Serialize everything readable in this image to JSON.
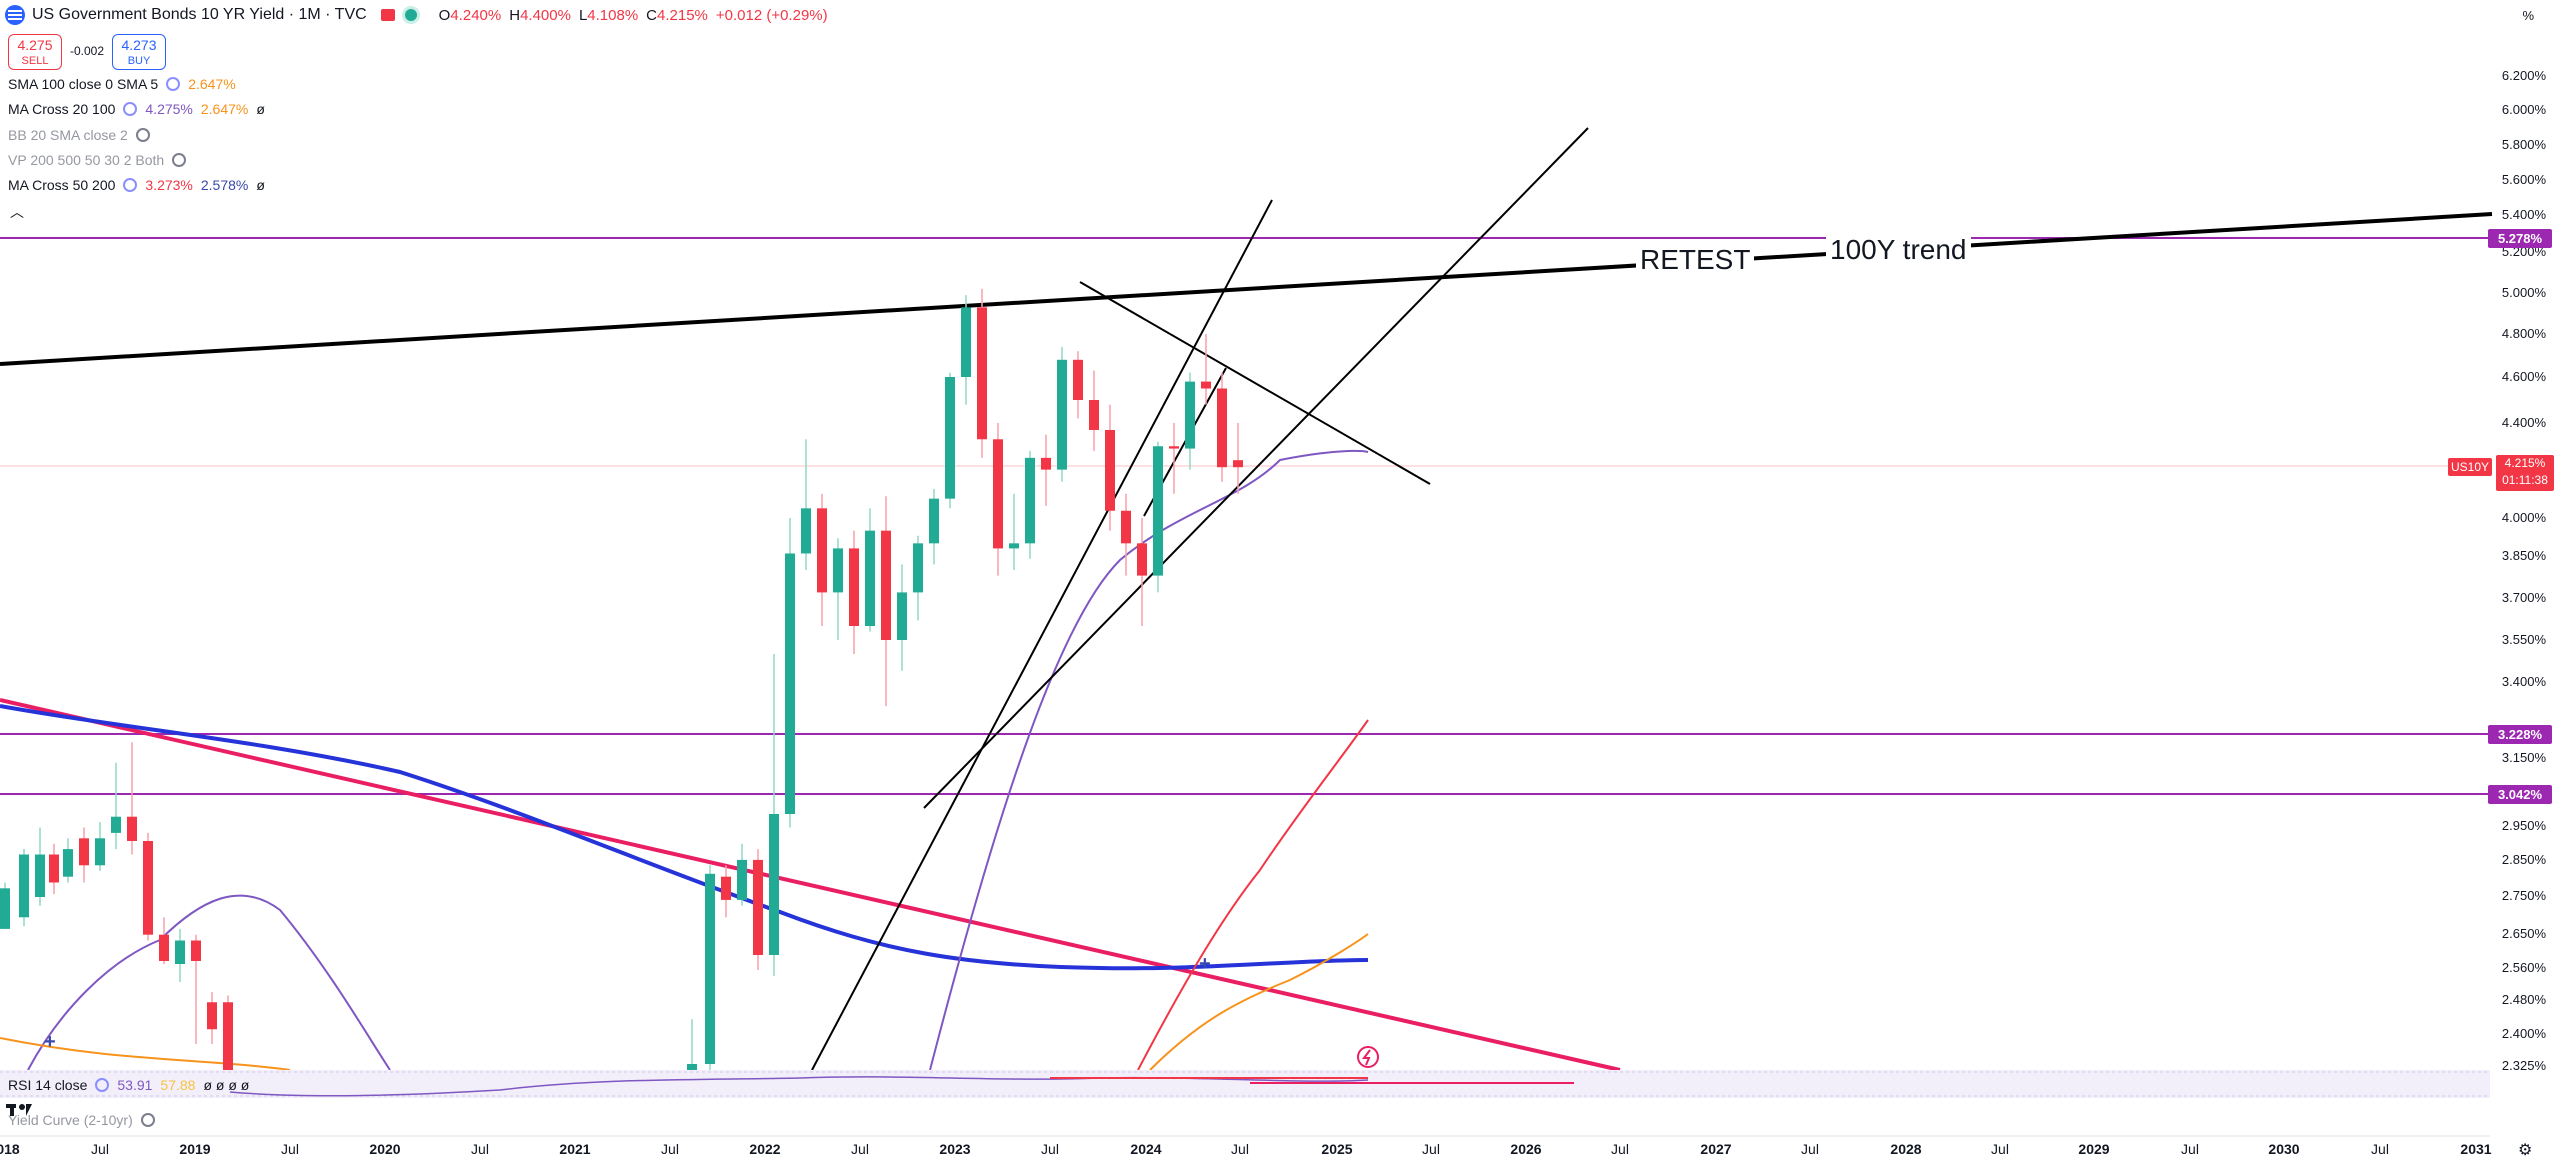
{
  "header": {
    "title": "US Government Bonds 10 YR Yield · 1M · TVC",
    "ohlc": {
      "o_label": "O",
      "o": "4.240%",
      "h_label": "H",
      "h": "4.400%",
      "l_label": "L",
      "l": "4.108%",
      "c_label": "C",
      "c": "4.215%",
      "change": "+0.012 (+0.29%)"
    }
  },
  "trade": {
    "sell_price": "4.275",
    "sell_label": "SELL",
    "spread": "-0.002",
    "buy_price": "4.273",
    "buy_label": "BUY"
  },
  "indicators": [
    {
      "name": "SMA 100 close 0 SMA 5",
      "v1": "",
      "v2": "2.647%",
      "v3": ""
    },
    {
      "name": "MA Cross 20 100",
      "v1": "4.275%",
      "v2": "2.647%",
      "v3": "ø"
    },
    {
      "name": "BB 20 SMA close 2",
      "v1": "",
      "v2": "",
      "v3": ""
    },
    {
      "name": "VP 200 500 50 30 2 Both",
      "v1": "",
      "v2": "",
      "v3": ""
    },
    {
      "name": "MA Cross 50 200",
      "v1": "3.273%",
      "v2": "2.578%",
      "v3": "ø"
    }
  ],
  "axis": {
    "unit": "%",
    "ticks": [
      "6.200%",
      "6.000%",
      "5.800%",
      "5.600%",
      "5.400%",
      "5.200%",
      "5.000%",
      "4.800%",
      "4.600%",
      "4.400%",
      "4.000%",
      "3.850%",
      "3.700%",
      "3.550%",
      "3.400%",
      "3.150%",
      "2.950%",
      "2.850%",
      "2.750%",
      "2.650%",
      "2.560%",
      "2.480%",
      "2.400%",
      "2.325%"
    ],
    "tags": [
      {
        "label": "5.278%",
        "color": "#9c27b0"
      },
      {
        "label": "3.228%",
        "color": "#9c27b0"
      },
      {
        "label": "3.042%",
        "color": "#9c27b0"
      }
    ],
    "symbol_tag": "US10Y",
    "price_tag": "4.215%",
    "countdown": "01:11:38"
  },
  "annotations": {
    "retest": "RETEST",
    "trend": "100Y trend"
  },
  "xaxis": [
    "018",
    "Jul",
    "2019",
    "Jul",
    "2020",
    "Jul",
    "2021",
    "Jul",
    "2022",
    "Jul",
    "2023",
    "Jul",
    "2024",
    "Jul",
    "2025",
    "Jul",
    "2026",
    "Jul",
    "2027",
    "Jul",
    "2028",
    "Jul",
    "2029",
    "Jul",
    "2030",
    "Jul",
    "2031"
  ],
  "rsi": {
    "name": "RSI 14 close",
    "v1": "53.91",
    "v2": "57.88",
    "zeros": "ø ø ø ø"
  },
  "yield_curve": {
    "name": "Yield Curve (2-10yr)"
  },
  "chart_data": {
    "type": "candlestick",
    "title": "US Government Bonds 10 YR Yield · 1M · TVC",
    "ylim": [
      2.3,
      6.3
    ],
    "ticks": [
      2.325,
      2.4,
      2.48,
      2.56,
      2.65,
      2.75,
      2.85,
      2.95,
      3.15,
      3.4,
      3.55,
      3.7,
      3.85,
      4.0,
      4.4,
      4.6,
      4.8,
      5.0,
      5.2,
      5.4,
      5.6,
      5.8,
      6.0,
      6.2
    ],
    "candles": [
      {
        "x": 5,
        "o": 2.74,
        "c": 2.88,
        "h": 2.9,
        "l": 2.74
      },
      {
        "x": 24,
        "o": 2.78,
        "c": 3.0,
        "h": 3.02,
        "l": 2.75
      },
      {
        "x": 40,
        "o": 2.85,
        "c": 3.0,
        "h": 3.1,
        "l": 2.82
      },
      {
        "x": 54,
        "o": 3.0,
        "c": 2.9,
        "h": 3.04,
        "l": 2.86
      },
      {
        "x": 68,
        "o": 2.92,
        "c": 3.02,
        "h": 3.06,
        "l": 2.9
      },
      {
        "x": 84,
        "o": 3.06,
        "c": 2.96,
        "h": 3.1,
        "l": 2.9
      },
      {
        "x": 100,
        "o": 2.96,
        "c": 3.06,
        "h": 3.12,
        "l": 2.94
      },
      {
        "x": 116,
        "o": 3.08,
        "c": 3.14,
        "h": 3.2,
        "l": 3.02
      },
      {
        "x": 132,
        "o": 3.14,
        "c": 3.05,
        "h": 3.22,
        "l": 3.0
      },
      {
        "x": 148,
        "o": 3.05,
        "c": 2.72,
        "h": 3.08,
        "l": 2.7
      },
      {
        "x": 164,
        "o": 2.72,
        "c": 2.63,
        "h": 2.78,
        "l": 2.62
      },
      {
        "x": 180,
        "o": 2.62,
        "c": 2.7,
        "h": 2.74,
        "l": 2.56
      },
      {
        "x": 196,
        "o": 2.7,
        "c": 2.63,
        "h": 2.72,
        "l": 2.38
      },
      {
        "x": 212,
        "o": 2.5,
        "c": 2.42,
        "h": 2.53,
        "l": 2.38
      },
      {
        "x": 228,
        "o": 2.5,
        "c": 2.3,
        "h": 2.52,
        "l": 2.3
      },
      {
        "x": 692,
        "o": 2.3,
        "c": 2.33,
        "h": 2.45,
        "l": 2.3
      },
      {
        "x": 710,
        "o": 2.33,
        "c": 2.93,
        "h": 2.96,
        "l": 2.3
      },
      {
        "x": 726,
        "o": 2.92,
        "c": 2.84,
        "h": 2.96,
        "l": 2.78
      },
      {
        "x": 742,
        "o": 2.84,
        "c": 2.98,
        "h": 3.04,
        "l": 2.82
      },
      {
        "x": 758,
        "o": 2.98,
        "c": 2.65,
        "h": 3.02,
        "l": 2.6
      },
      {
        "x": 774,
        "o": 2.65,
        "c": 3.15,
        "h": 3.5,
        "l": 2.58
      },
      {
        "x": 790,
        "o": 3.15,
        "c": 3.86,
        "h": 4.0,
        "l": 3.1
      },
      {
        "x": 806,
        "o": 3.86,
        "c": 4.04,
        "h": 4.33,
        "l": 3.8
      },
      {
        "x": 822,
        "o": 4.04,
        "c": 3.72,
        "h": 4.1,
        "l": 3.6
      },
      {
        "x": 838,
        "o": 3.72,
        "c": 3.88,
        "h": 3.92,
        "l": 3.55
      },
      {
        "x": 854,
        "o": 3.88,
        "c": 3.6,
        "h": 3.95,
        "l": 3.5
      },
      {
        "x": 870,
        "o": 3.6,
        "c": 3.95,
        "h": 4.04,
        "l": 3.58
      },
      {
        "x": 886,
        "o": 3.95,
        "c": 3.55,
        "h": 4.09,
        "l": 3.32
      },
      {
        "x": 902,
        "o": 3.55,
        "c": 3.72,
        "h": 3.82,
        "l": 3.44
      },
      {
        "x": 918,
        "o": 3.72,
        "c": 3.9,
        "h": 3.93,
        "l": 3.62
      },
      {
        "x": 934,
        "o": 3.9,
        "c": 4.08,
        "h": 4.12,
        "l": 3.82
      },
      {
        "x": 950,
        "o": 4.08,
        "c": 4.6,
        "h": 4.62,
        "l": 4.04
      },
      {
        "x": 966,
        "o": 4.6,
        "c": 4.93,
        "h": 4.99,
        "l": 4.48
      },
      {
        "x": 982,
        "o": 4.93,
        "c": 4.33,
        "h": 5.02,
        "l": 4.25
      },
      {
        "x": 998,
        "o": 4.33,
        "c": 3.88,
        "h": 4.4,
        "l": 3.78
      },
      {
        "x": 1014,
        "o": 3.88,
        "c": 3.9,
        "h": 4.1,
        "l": 3.8
      },
      {
        "x": 1030,
        "o": 3.9,
        "c": 4.25,
        "h": 4.28,
        "l": 3.84
      },
      {
        "x": 1046,
        "o": 4.25,
        "c": 4.2,
        "h": 4.35,
        "l": 4.05
      },
      {
        "x": 1062,
        "o": 4.2,
        "c": 4.68,
        "h": 4.74,
        "l": 4.15
      },
      {
        "x": 1078,
        "o": 4.68,
        "c": 4.5,
        "h": 4.72,
        "l": 4.42
      },
      {
        "x": 1094,
        "o": 4.5,
        "c": 4.37,
        "h": 4.63,
        "l": 4.28
      },
      {
        "x": 1110,
        "o": 4.37,
        "c": 4.03,
        "h": 4.48,
        "l": 3.95
      },
      {
        "x": 1126,
        "o": 4.03,
        "c": 3.9,
        "h": 4.1,
        "l": 3.78
      },
      {
        "x": 1142,
        "o": 3.9,
        "c": 3.78,
        "h": 4.0,
        "l": 3.6
      },
      {
        "x": 1158,
        "o": 3.78,
        "c": 4.3,
        "h": 4.32,
        "l": 3.72
      },
      {
        "x": 1174,
        "o": 4.3,
        "c": 4.29,
        "h": 4.4,
        "l": 4.1
      },
      {
        "x": 1190,
        "o": 4.29,
        "c": 4.58,
        "h": 4.62,
        "l": 4.2
      },
      {
        "x": 1206,
        "o": 4.58,
        "c": 4.55,
        "h": 4.8,
        "l": 4.48
      },
      {
        "x": 1222,
        "o": 4.55,
        "c": 4.21,
        "h": 4.62,
        "l": 4.15
      },
      {
        "x": 1238,
        "o": 4.24,
        "c": 4.21,
        "h": 4.4,
        "l": 4.1
      }
    ],
    "levels": [
      5.278,
      3.228,
      3.042
    ],
    "current_price": 4.215
  }
}
